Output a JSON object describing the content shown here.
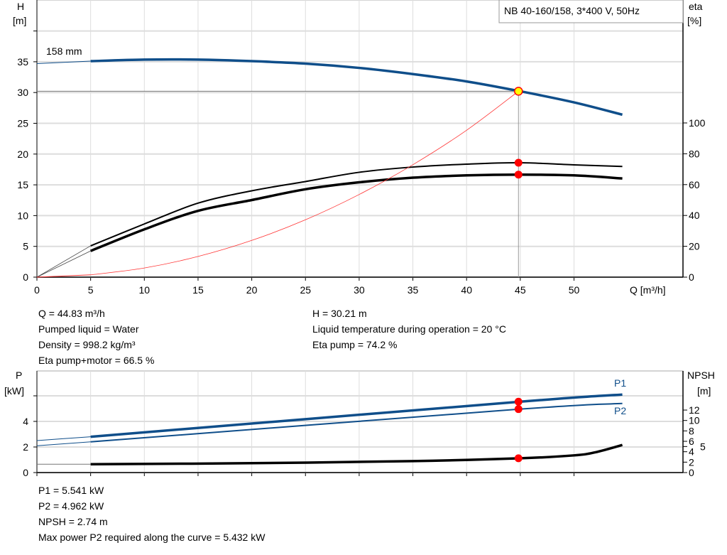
{
  "top_chart": {
    "legend": "NB 40-160/158, 3*400 V, 50Hz",
    "impeller_label": "158 mm",
    "y_left_label": [
      "H",
      "[m]"
    ],
    "y_right_label": [
      "eta",
      "[%]"
    ],
    "x_label": "Q [m³/h]"
  },
  "bottom_chart": {
    "y_left_label": [
      "P",
      "[kW]"
    ],
    "y_right_label": [
      "NPSH",
      "[m]"
    ],
    "p1_label": "P1",
    "p2_label": "P2"
  },
  "info_top": {
    "left": [
      "Q = 44.83 m³/h",
      "Pumped liquid = Water",
      "Density = 998.2 kg/m³",
      "Eta pump+motor = 66.5 %"
    ],
    "right": [
      "H = 30.21 m",
      "Liquid temperature during operation = 20 °C",
      "Eta pump = 74.2 %"
    ]
  },
  "info_bottom": [
    "P1 = 5.541 kW",
    "P2 = 4.962 kW",
    "NPSH = 2.74 m",
    "Max power P2 required along the curve = 5.432 kW"
  ],
  "colors": {
    "head": "#0f4e8a",
    "eta": "#000000",
    "system": "#ff3333",
    "point": "#ff0000",
    "duty": "#ffff00",
    "grid": "#dddddd"
  },
  "chart_data": [
    {
      "type": "line",
      "x_ticks": [
        0,
        5,
        10,
        15,
        20,
        25,
        30,
        35,
        40,
        45,
        50
      ],
      "xlim": [
        0,
        60
      ],
      "y_left": {
        "ticks": [
          0,
          5,
          10,
          15,
          20,
          25,
          30,
          35
        ],
        "lim": [
          0,
          40
        ]
      },
      "y_right": {
        "ticks": [
          0,
          20,
          40,
          60,
          80,
          100
        ],
        "lim": [
          0,
          180
        ]
      },
      "grid": true,
      "duty_point": {
        "Q": 44.83,
        "H": 30.21,
        "eta_pump": 74.2,
        "eta_pump_motor": 66.5
      },
      "series": [
        {
          "key": "head",
          "axis": "left",
          "x": [
            0,
            5,
            10,
            15,
            20,
            25,
            30,
            35,
            40,
            45,
            50,
            54.5
          ],
          "y": [
            34.7,
            35.1,
            35.35,
            35.35,
            35.1,
            34.7,
            34.0,
            33.0,
            31.8,
            30.2,
            28.4,
            26.4
          ]
        },
        {
          "key": "eta_pump",
          "axis": "right",
          "x": [
            5,
            10,
            15,
            20,
            25,
            30,
            35,
            40,
            45,
            50,
            54.5
          ],
          "y": [
            20.3,
            34.5,
            48,
            56,
            62,
            68,
            71.4,
            73.3,
            74.2,
            72.8,
            71.8
          ]
        },
        {
          "key": "eta_pump_motor",
          "axis": "right",
          "x": [
            5,
            10,
            15,
            20,
            25,
            30,
            35,
            40,
            45,
            50,
            54.5
          ],
          "y": [
            17,
            31,
            43,
            50,
            57,
            61.5,
            64.5,
            66,
            66.5,
            66,
            64
          ]
        },
        {
          "key": "system",
          "axis": "left",
          "x": [
            0,
            5,
            10,
            15,
            20,
            25,
            30,
            35,
            40,
            44.83
          ],
          "y": [
            0,
            0.37,
            1.49,
            3.36,
            5.97,
            9.32,
            13.43,
            18.27,
            23.87,
            30.21
          ]
        }
      ]
    },
    {
      "type": "line",
      "x_ticks": [
        0,
        5,
        10,
        15,
        20,
        25,
        30,
        35,
        40,
        45,
        50
      ],
      "xlim": [
        0,
        60
      ],
      "y_left": {
        "ticks": [
          0,
          2,
          4
        ],
        "lim": [
          0,
          8
        ]
      },
      "y_right": {
        "ticks": [
          0,
          2,
          4,
          5,
          6,
          8,
          10,
          12
        ],
        "lim": [
          0,
          19.5
        ]
      },
      "grid": true,
      "series": [
        {
          "key": "P1",
          "name": "P1",
          "axis": "left",
          "x": [
            0,
            5,
            45,
            54.5
          ],
          "y": [
            2.5,
            2.8,
            5.541,
            6.1
          ]
        },
        {
          "key": "P2",
          "name": "P2",
          "axis": "left",
          "x": [
            0,
            5,
            45,
            54.5
          ],
          "y": [
            2.1,
            2.4,
            4.962,
            5.4
          ]
        },
        {
          "key": "NPSH",
          "axis": "right",
          "x": [
            0,
            5,
            20,
            35,
            45,
            50,
            52,
            54.5
          ],
          "y": [
            1.6,
            1.6,
            1.8,
            2.2,
            2.74,
            3.3,
            3.9,
            5.3
          ]
        }
      ],
      "points": [
        {
          "Q": 44.83,
          "P1": 5.541,
          "P2": 4.962,
          "NPSH": 2.74
        }
      ]
    }
  ]
}
